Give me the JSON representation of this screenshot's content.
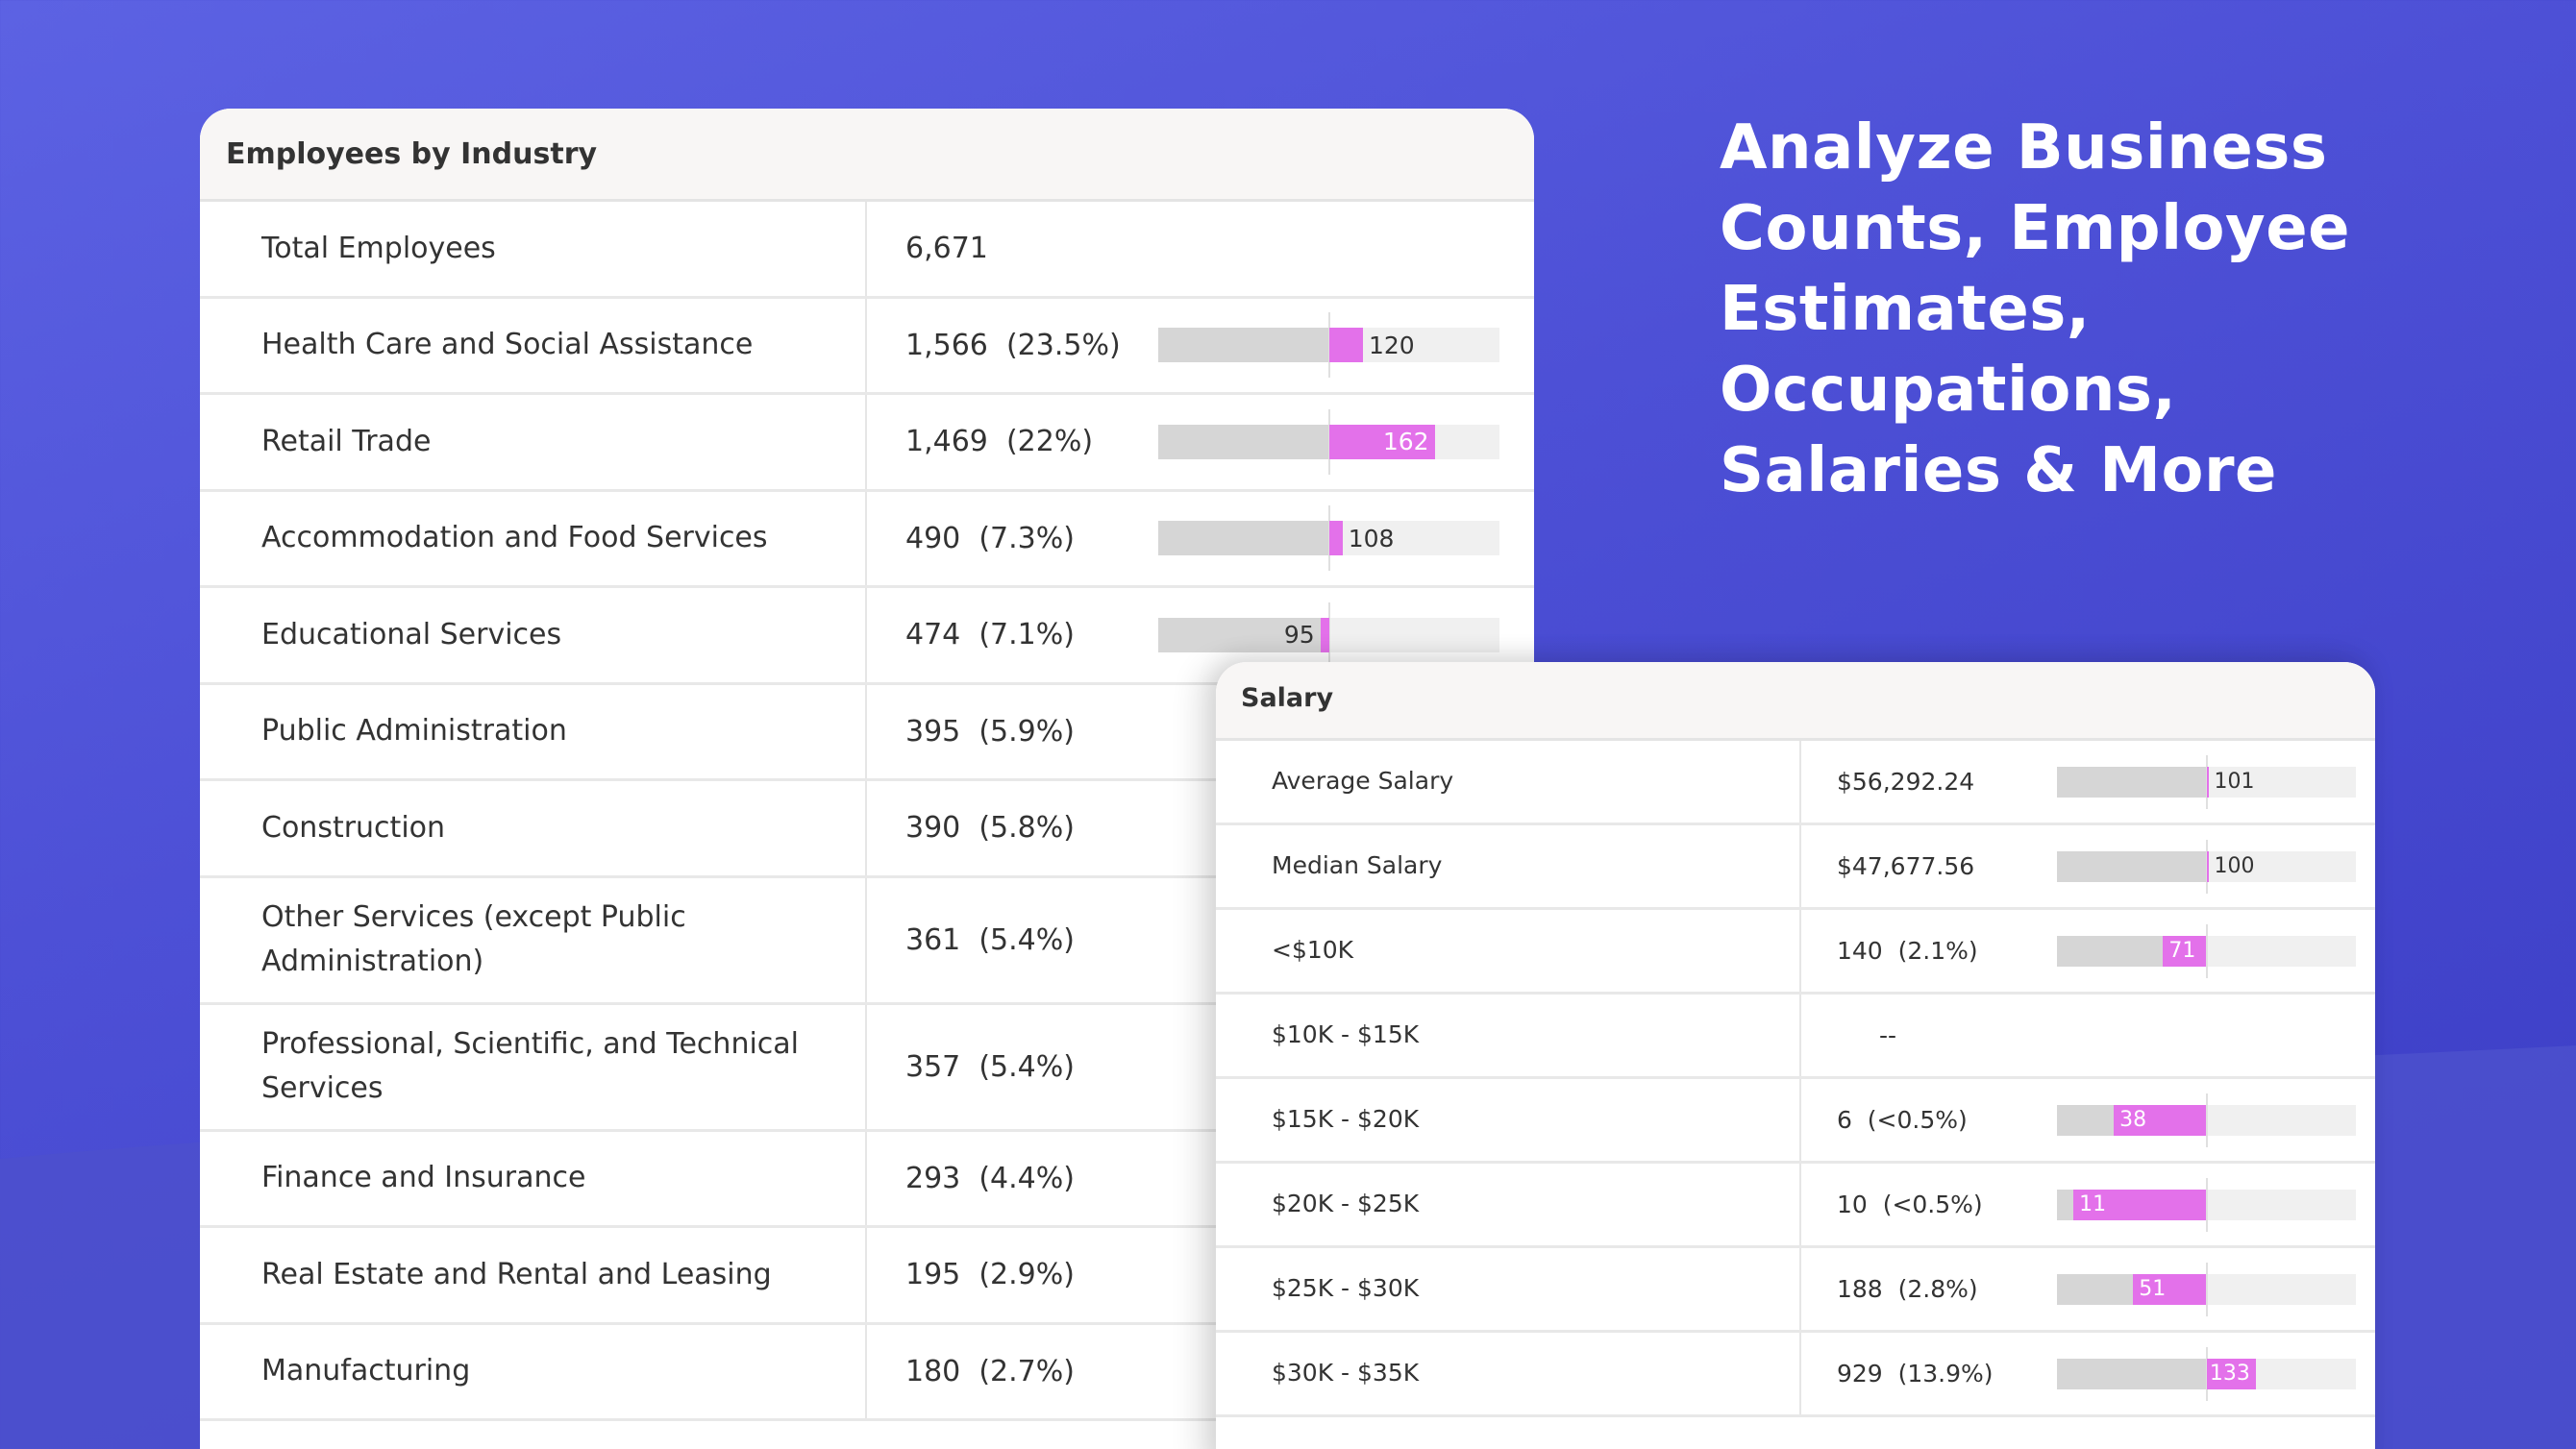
{
  "headline": {
    "lines": [
      "Analyze Business",
      "Counts, Employee",
      "Estimates, Occupations,",
      "Salaries & More"
    ]
  },
  "colors": {
    "background_start": "#5c62e3",
    "background_end": "#3a3cc4",
    "bar_highlight": "#e371ea",
    "bar_below": "#d6d6d6",
    "bar_above": "#f0f0f0"
  },
  "industry_card": {
    "title": "Employees by Industry",
    "rows": [
      {
        "label": "Total Employees",
        "value": "6,671",
        "index": null
      },
      {
        "label": "Health Care and Social Assistance",
        "value": "1,566  (23.5%)",
        "index": 120
      },
      {
        "label": "Retail Trade",
        "value": "1,469  (22%)",
        "index": 162
      },
      {
        "label": "Accommodation and Food Services",
        "value": "490  (7.3%)",
        "index": 108
      },
      {
        "label": "Educational Services",
        "value": "474  (7.1%)",
        "index": 95
      },
      {
        "label": "Public Administration",
        "value": "395  (5.9%)",
        "index": null
      },
      {
        "label": "Construction",
        "value": "390  (5.8%)",
        "index": null
      },
      {
        "label": "Other Services (except Public Administration)",
        "value": "361  (5.4%)",
        "index": null
      },
      {
        "label": "Professional, Scientific, and Technical Services",
        "value": "357  (5.4%)",
        "index": null
      },
      {
        "label": "Finance and Insurance",
        "value": "293  (4.4%)",
        "index": null
      },
      {
        "label": "Real Estate and Rental and Leasing",
        "value": "195  (2.9%)",
        "index": null
      },
      {
        "label": "Manufacturing",
        "value": "180  (2.7%)",
        "index": null
      }
    ]
  },
  "salary_card": {
    "title": "Salary",
    "rows": [
      {
        "label": "Average Salary",
        "value": "$56,292.24",
        "index": 101
      },
      {
        "label": "Median Salary",
        "value": "$47,677.56",
        "index": 100
      },
      {
        "label": "<$10K",
        "value": "140  (2.1%)",
        "index": 71
      },
      {
        "label": "$10K - $15K",
        "value": "--",
        "index": null
      },
      {
        "label": "$15K - $20K",
        "value": "6  (<0.5%)",
        "index": 38
      },
      {
        "label": "$20K - $25K",
        "value": "10  (<0.5%)",
        "index": 11
      },
      {
        "label": "$25K - $30K",
        "value": "188  (2.8%)",
        "index": 51
      },
      {
        "label": "$30K - $35K",
        "value": "929  (13.9%)",
        "index": 133
      }
    ]
  }
}
